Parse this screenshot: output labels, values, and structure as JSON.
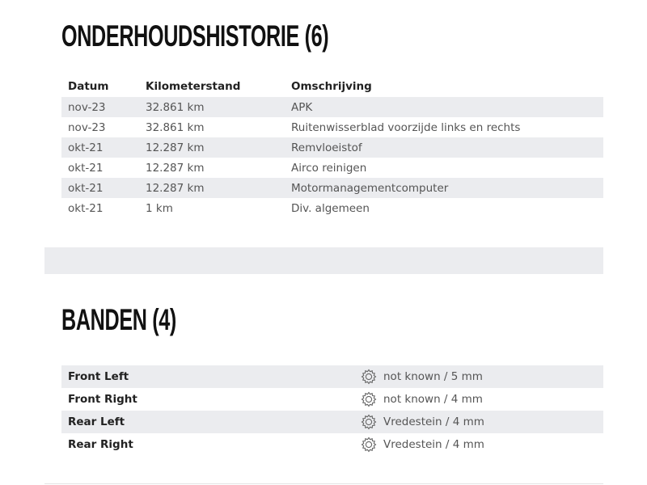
{
  "maintenance": {
    "title": "ONDERHOUDSHISTORIE (6)",
    "headers": [
      "Datum",
      "Kilometerstand",
      "Omschrijving"
    ],
    "rows": [
      [
        "nov-23",
        "32.861 km",
        "APK"
      ],
      [
        "nov-23",
        "32.861 km",
        "Ruitenwisserblad voorzijde links en rechts"
      ],
      [
        "okt-21",
        "12.287 km",
        "Remvloeistof"
      ],
      [
        "okt-21",
        "12.287 km",
        "Airco reinigen"
      ],
      [
        "okt-21",
        "12.287 km",
        "Motormanagementcomputer"
      ],
      [
        "okt-21",
        "1 km",
        "Div. algemeen"
      ]
    ]
  },
  "tyres": {
    "title": "BANDEN (4)",
    "icon": "tyre-gear-icon",
    "rows": [
      {
        "position": "Front Left",
        "value": "not known / 5 mm"
      },
      {
        "position": "Front Right",
        "value": "not known / 4 mm"
      },
      {
        "position": "Rear Left",
        "value": "Vredestein / 4 mm"
      },
      {
        "position": "Rear Right",
        "value": "Vredestein / 4 mm"
      }
    ]
  }
}
